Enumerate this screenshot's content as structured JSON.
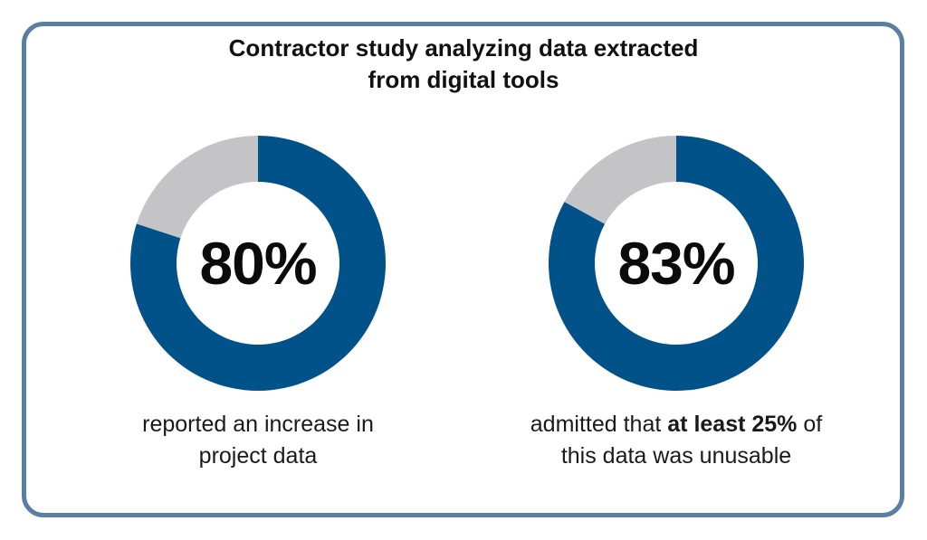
{
  "title": {
    "line1": "Contractor study analyzing data extracted",
    "line2": "from digital tools"
  },
  "colors": {
    "primary": "#005288",
    "secondary": "#c4c4c6",
    "frame": "#5b7fa3",
    "text": "#111111"
  },
  "chart_data": [
    {
      "type": "pie",
      "title": "",
      "label": "80%",
      "slices": [
        {
          "name": "",
          "value": 80,
          "color": "#005288"
        },
        {
          "name": "",
          "value": 20,
          "color": "#c4c4c6"
        }
      ],
      "caption": {
        "line1": "reported an increase in",
        "line2": "project data"
      }
    },
    {
      "type": "pie",
      "title": "",
      "label": "83%",
      "slices": [
        {
          "name": "",
          "value": 83,
          "color": "#005288"
        },
        {
          "name": "",
          "value": 17,
          "color": "#c4c4c6"
        }
      ],
      "caption": {
        "line1_pre": "admitted that ",
        "line1_bold": "at least 25%",
        "line1_post": " of",
        "line2": "this data was unusable"
      }
    }
  ]
}
